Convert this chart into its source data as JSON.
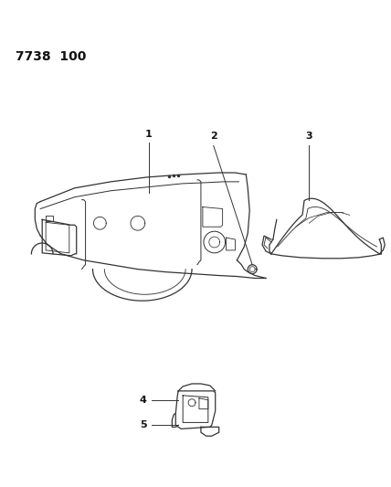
{
  "title": "7738  100",
  "background_color": "#ffffff",
  "line_color": "#333333",
  "label_color": "#111111",
  "fig_width": 4.28,
  "fig_height": 5.33,
  "dpi": 100
}
